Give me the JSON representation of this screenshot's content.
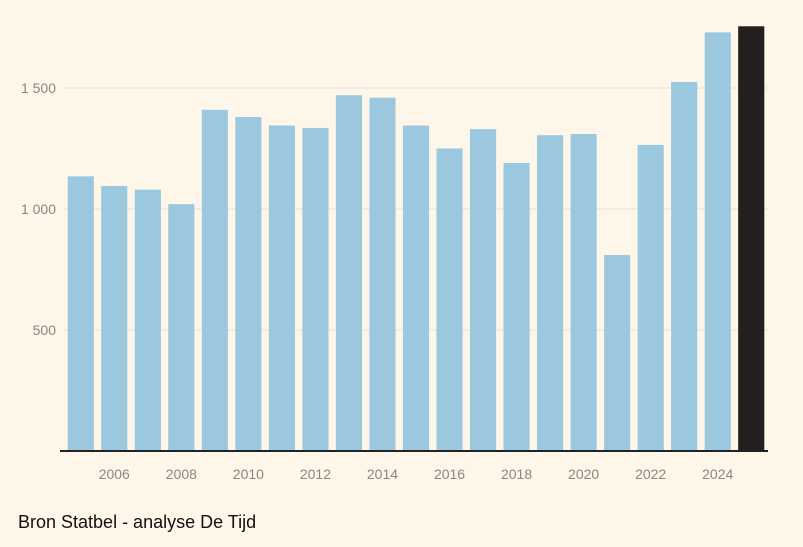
{
  "source": "Bron Statbel - analyse De Tijd",
  "colors": {
    "background": "#fff6ea",
    "bar": "#9bc8de",
    "highlight_bar": "#231f20",
    "axis": "#222222",
    "tick_label": "#8b8680",
    "grid": "#e8e0d6"
  },
  "chart_data": {
    "type": "bar",
    "x": [
      2005,
      2006,
      2007,
      2008,
      2009,
      2010,
      2011,
      2012,
      2013,
      2014,
      2015,
      2016,
      2017,
      2018,
      2019,
      2020,
      2021,
      2022,
      2023,
      2024,
      2025
    ],
    "values": [
      1135,
      1095,
      1080,
      1020,
      1410,
      1380,
      1345,
      1335,
      1470,
      1460,
      1345,
      1250,
      1330,
      1190,
      1305,
      1310,
      810,
      1265,
      1525,
      1730,
      1755
    ],
    "highlight_last": true,
    "x_tick_labels": [
      "2006",
      "2008",
      "2010",
      "2012",
      "2014",
      "2016",
      "2018",
      "2020",
      "2022",
      "2024"
    ],
    "y_ticks": [
      500,
      1000,
      1500
    ],
    "y_tick_labels": [
      "500",
      "1 000",
      "1 500"
    ],
    "ylim": [
      0,
      1755
    ],
    "grid": true,
    "title": "",
    "xlabel": "",
    "ylabel": ""
  }
}
